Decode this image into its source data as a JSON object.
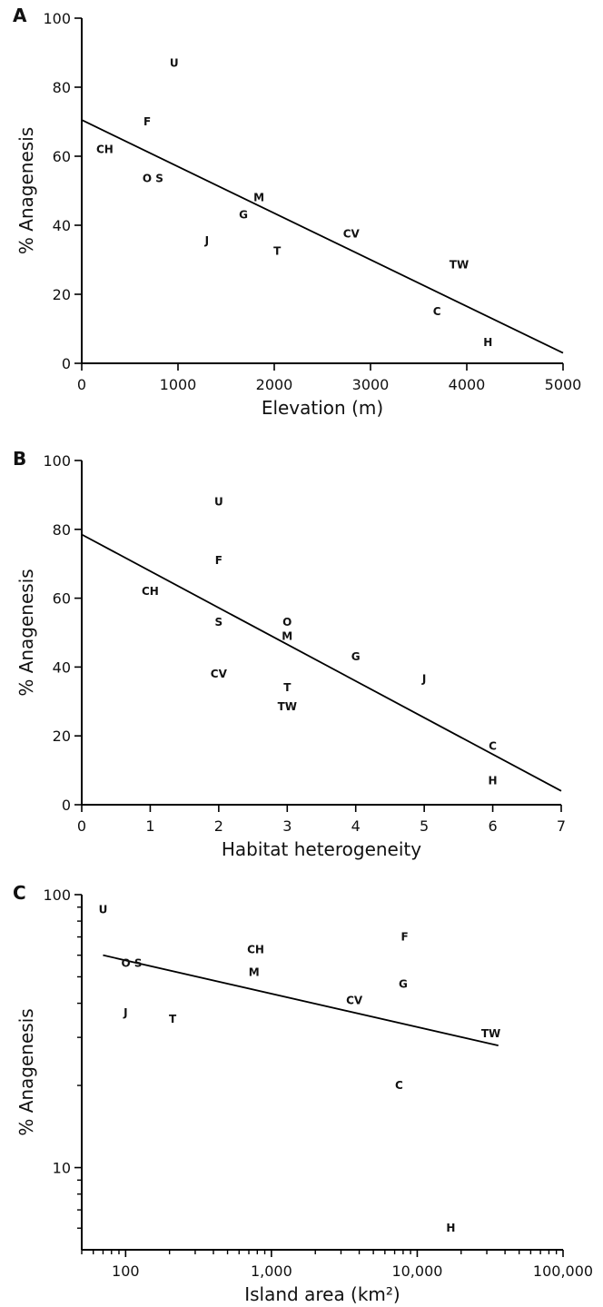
{
  "chart_data": [
    {
      "type": "scatter",
      "panel_label": "A",
      "xlabel": "Elevation (m)",
      "ylabel": "% Anagenesis",
      "xlim": [
        0,
        5000
      ],
      "ylim": [
        0,
        100
      ],
      "x_ticks": [
        0,
        1000,
        2000,
        3000,
        4000,
        5000
      ],
      "x_tick_labels": [
        "0",
        "1000",
        "2000",
        "3000",
        "4000",
        "5000"
      ],
      "y_ticks": [
        0,
        20,
        40,
        60,
        80,
        100
      ],
      "y_tick_labels": [
        "0",
        "20",
        "40",
        "60",
        "80",
        "100"
      ],
      "points": [
        {
          "label": "U",
          "x": 960,
          "y": 87
        },
        {
          "label": "F",
          "x": 680,
          "y": 70
        },
        {
          "label": "CH",
          "x": 240,
          "y": 62
        },
        {
          "label": "O S",
          "x": 740,
          "y": 53.5
        },
        {
          "label": "M",
          "x": 1840,
          "y": 48
        },
        {
          "label": "G",
          "x": 1680,
          "y": 43
        },
        {
          "label": "J",
          "x": 1300,
          "y": 35.5
        },
        {
          "label": "T",
          "x": 2030,
          "y": 32.5
        },
        {
          "label": "CV",
          "x": 2800,
          "y": 37.5
        },
        {
          "label": "TW",
          "x": 3920,
          "y": 28.5
        },
        {
          "label": "C",
          "x": 3690,
          "y": 15
        },
        {
          "label": "H",
          "x": 4220,
          "y": 6
        }
      ],
      "trend_line": {
        "x": [
          0,
          5000
        ],
        "y": [
          70.5,
          3
        ]
      },
      "grid": false,
      "legend": "none"
    },
    {
      "type": "scatter",
      "panel_label": "B",
      "xlabel": "Habitat heterogeneity",
      "ylabel": "% Anagenesis",
      "xlim": [
        0,
        7
      ],
      "ylim": [
        0,
        100
      ],
      "x_ticks": [
        0,
        1,
        2,
        3,
        4,
        5,
        6,
        7
      ],
      "x_tick_labels": [
        "0",
        "1",
        "2",
        "3",
        "4",
        "5",
        "6",
        "7"
      ],
      "y_ticks": [
        0,
        20,
        40,
        60,
        80,
        100
      ],
      "y_tick_labels": [
        "0",
        "20",
        "40",
        "60",
        "80",
        "100"
      ],
      "points": [
        {
          "label": "U",
          "x": 2,
          "y": 88
        },
        {
          "label": "F",
          "x": 2,
          "y": 71
        },
        {
          "label": "CH",
          "x": 1,
          "y": 62
        },
        {
          "label": "S",
          "x": 2,
          "y": 53
        },
        {
          "label": "O",
          "x": 3,
          "y": 53
        },
        {
          "label": "M",
          "x": 3,
          "y": 49
        },
        {
          "label": "G",
          "x": 4,
          "y": 43
        },
        {
          "label": "CV",
          "x": 2,
          "y": 38
        },
        {
          "label": "J",
          "x": 5,
          "y": 36.5
        },
        {
          "label": "T",
          "x": 3,
          "y": 34
        },
        {
          "label": "TW",
          "x": 3,
          "y": 28.5
        },
        {
          "label": "C",
          "x": 6,
          "y": 17
        },
        {
          "label": "H",
          "x": 6,
          "y": 7
        }
      ],
      "trend_line": {
        "x": [
          0,
          7
        ],
        "y": [
          78.5,
          4
        ]
      },
      "grid": false,
      "legend": "none"
    },
    {
      "type": "scatter",
      "panel_label": "C",
      "xlabel": "Island area (km²)",
      "ylabel": "% Anagenesis",
      "x_scale": "log",
      "y_scale": "log",
      "xlim": [
        50,
        100000
      ],
      "ylim": [
        5,
        100
      ],
      "x_ticks": [
        100,
        1000,
        10000,
        100000
      ],
      "x_tick_labels": [
        "100",
        "1,000",
        "10,000",
        "100,000"
      ],
      "y_ticks": [
        10,
        100
      ],
      "y_tick_labels": [
        "10",
        "100"
      ],
      "points": [
        {
          "label": "U",
          "x": 70,
          "y": 88
        },
        {
          "label": "F",
          "x": 8200,
          "y": 70
        },
        {
          "label": "CH",
          "x": 780,
          "y": 63
        },
        {
          "label": "O S",
          "x": 110,
          "y": 56
        },
        {
          "label": "M",
          "x": 760,
          "y": 52
        },
        {
          "label": "G",
          "x": 8000,
          "y": 47
        },
        {
          "label": "CV",
          "x": 3700,
          "y": 41
        },
        {
          "label": "J",
          "x": 100,
          "y": 37
        },
        {
          "label": "T",
          "x": 210,
          "y": 35
        },
        {
          "label": "TW",
          "x": 32000,
          "y": 31
        },
        {
          "label": "C",
          "x": 7500,
          "y": 20
        },
        {
          "label": "H",
          "x": 17000,
          "y": 6
        }
      ],
      "trend_line": {
        "x": [
          70,
          36000
        ],
        "y": [
          60,
          28
        ]
      },
      "grid": false,
      "legend": "none"
    }
  ]
}
